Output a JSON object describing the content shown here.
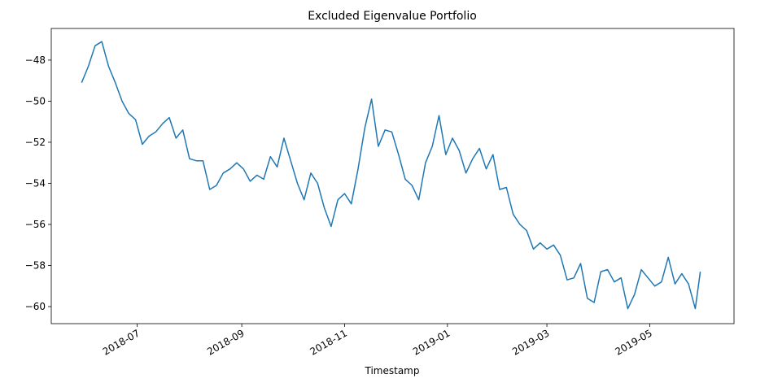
{
  "chart_data": {
    "type": "line",
    "title": "Excluded Eigenvalue Portfolio",
    "x_label": "Timestamp",
    "x": [
      "2018-05-29",
      "2018-06-02",
      "2018-06-06",
      "2018-06-10",
      "2018-06-14",
      "2018-06-18",
      "2018-06-22",
      "2018-06-26",
      "2018-06-30",
      "2018-07-04",
      "2018-07-08",
      "2018-07-12",
      "2018-07-16",
      "2018-07-20",
      "2018-07-24",
      "2018-07-28",
      "2018-08-01",
      "2018-08-05",
      "2018-08-09",
      "2018-08-13",
      "2018-08-17",
      "2018-08-21",
      "2018-08-25",
      "2018-08-29",
      "2018-09-02",
      "2018-09-06",
      "2018-09-10",
      "2018-09-14",
      "2018-09-18",
      "2018-09-22",
      "2018-09-26",
      "2018-09-30",
      "2018-10-04",
      "2018-10-08",
      "2018-10-12",
      "2018-10-16",
      "2018-10-20",
      "2018-10-24",
      "2018-10-28",
      "2018-11-01",
      "2018-11-05",
      "2018-11-09",
      "2018-11-13",
      "2018-11-17",
      "2018-11-21",
      "2018-11-25",
      "2018-11-29",
      "2018-12-03",
      "2018-12-07",
      "2018-12-11",
      "2018-12-15",
      "2018-12-19",
      "2018-12-23",
      "2018-12-27",
      "2018-12-31",
      "2019-01-04",
      "2019-01-08",
      "2019-01-12",
      "2019-01-16",
      "2019-01-20",
      "2019-01-24",
      "2019-01-28",
      "2019-02-01",
      "2019-02-05",
      "2019-02-09",
      "2019-02-13",
      "2019-02-17",
      "2019-02-21",
      "2019-02-25",
      "2019-03-01",
      "2019-03-05",
      "2019-03-09",
      "2019-03-13",
      "2019-03-17",
      "2019-03-21",
      "2019-03-25",
      "2019-03-29",
      "2019-04-02",
      "2019-04-06",
      "2019-04-10",
      "2019-04-14",
      "2019-04-18",
      "2019-04-22",
      "2019-04-26",
      "2019-04-30",
      "2019-05-04",
      "2019-05-08",
      "2019-05-12",
      "2019-05-16",
      "2019-05-20",
      "2019-05-24",
      "2019-05-28",
      "2019-05-31"
    ],
    "series": [
      {
        "color": "#1f77b4",
        "values": [
          -49.1,
          -48.3,
          -47.3,
          -47.1,
          -48.3,
          -49.1,
          -50.0,
          -50.6,
          -50.9,
          -52.1,
          -51.7,
          -51.5,
          -51.1,
          -50.8,
          -51.8,
          -51.4,
          -52.8,
          -52.9,
          -52.9,
          -54.3,
          -54.1,
          -53.5,
          -53.3,
          -53.0,
          -53.3,
          -53.9,
          -53.6,
          -53.8,
          -52.7,
          -53.2,
          -51.8,
          -52.9,
          -54.0,
          -54.8,
          -53.5,
          -54.0,
          -55.2,
          -56.1,
          -54.8,
          -54.5,
          -55.0,
          -53.3,
          -51.3,
          -49.9,
          -52.2,
          -51.4,
          -51.5,
          -52.6,
          -53.8,
          -54.1,
          -54.8,
          -53.0,
          -52.2,
          -50.7,
          -52.6,
          -51.8,
          -52.4,
          -53.5,
          -52.8,
          -52.3,
          -53.3,
          -52.6,
          -54.3,
          -54.2,
          -55.5,
          -56.0,
          -56.3,
          -57.2,
          -56.9,
          -57.2,
          -57.0,
          -57.5,
          -58.7,
          -58.6,
          -57.9,
          -59.6,
          -59.8,
          -58.3,
          -58.2,
          -58.8,
          -58.6,
          -60.1,
          -59.4,
          -58.2,
          -58.6,
          -59.0,
          -58.8,
          -57.6,
          -58.9,
          -58.4,
          -58.9,
          -60.1,
          -58.3
        ]
      }
    ],
    "xlim": [
      "2018-05-11",
      "2019-06-20"
    ],
    "xticks": [
      {
        "value": "2018-07-01",
        "label": "2018-07"
      },
      {
        "value": "2018-09-01",
        "label": "2018-09"
      },
      {
        "value": "2018-11-01",
        "label": "2018-11"
      },
      {
        "value": "2019-01-01",
        "label": "2019-01"
      },
      {
        "value": "2019-03-01",
        "label": "2019-03"
      },
      {
        "value": "2019-05-01",
        "label": "2019-05"
      }
    ],
    "ylim": [
      -60.83,
      -46.46
    ],
    "yticks": [
      {
        "value": -60,
        "label": "−60"
      },
      {
        "value": -58,
        "label": "−58"
      },
      {
        "value": -56,
        "label": "−56"
      },
      {
        "value": -54,
        "label": "−54"
      },
      {
        "value": -52,
        "label": "−52"
      },
      {
        "value": -50,
        "label": "−50"
      },
      {
        "value": -48,
        "label": "−48"
      }
    ],
    "grid": false
  }
}
